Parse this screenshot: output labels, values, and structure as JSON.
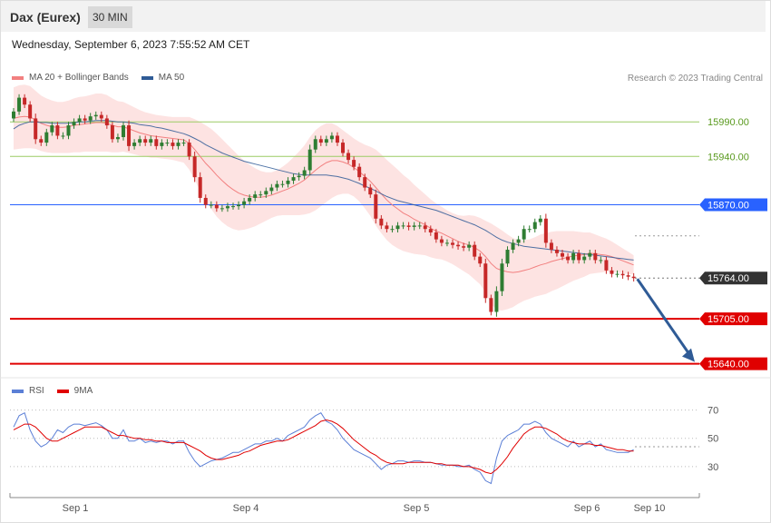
{
  "header": {
    "title": "Dax (Eurex)",
    "interval": "30 MIN",
    "datetime": "Wednesday, September 6, 2023 7:55:52 AM CET"
  },
  "legend": {
    "ma20": "MA 20 + Bollinger Bands",
    "ma50": "MA 50",
    "copyright": "Research © 2023 Trading Central"
  },
  "rsi_legend": {
    "rsi": "RSI",
    "ma": "9MA"
  },
  "colors": {
    "ma20": "#f28080",
    "ma50": "#2f5b96",
    "band_fill": "#fde0df",
    "bull": "#2e7d32",
    "bear": "#c62828",
    "resistance": "#9ccc65",
    "pivot": "#2962ff",
    "support": "#e00000",
    "current": "#333333",
    "rsi": "#5b7fd6",
    "rsi_ma": "#e00000",
    "arrow": "#2f5b96"
  },
  "chart_data": [
    {
      "type": "candlestick",
      "title": "Dax (Eurex) 30 MIN",
      "x_ticks": [
        "Sep 1",
        "Sep 4",
        "Sep 5",
        "Sep 6",
        "Sep 10"
      ],
      "ylim": [
        15625,
        16035
      ],
      "levels": [
        {
          "value": 15990.0,
          "label": "15990.00",
          "kind": "resistance"
        },
        {
          "value": 15940.0,
          "label": "15940.00",
          "kind": "resistance"
        },
        {
          "value": 15870.0,
          "label": "15870.00",
          "kind": "pivot"
        },
        {
          "value": 15764.0,
          "label": "15764.00",
          "kind": "current"
        },
        {
          "value": 15705.0,
          "label": "15705.00",
          "kind": "support"
        },
        {
          "value": 15640.0,
          "label": "15640.00",
          "kind": "support"
        }
      ],
      "close": [
        16005,
        16025,
        16015,
        15995,
        15965,
        15960,
        15975,
        15985,
        15970,
        15970,
        15985,
        15990,
        15995,
        15992,
        15998,
        16000,
        15995,
        15985,
        15965,
        15968,
        15985,
        15955,
        15960,
        15965,
        15960,
        15965,
        15955,
        15960,
        15960,
        15955,
        15960,
        15960,
        15940,
        15910,
        15880,
        15870,
        15870,
        15865,
        15865,
        15868,
        15868,
        15870,
        15875,
        15880,
        15885,
        15885,
        15890,
        15895,
        15900,
        15900,
        15905,
        15910,
        15912,
        15920,
        15950,
        15965,
        15960,
        15965,
        15970,
        15960,
        15945,
        15935,
        15925,
        15910,
        15895,
        15885,
        15850,
        15840,
        15835,
        15835,
        15840,
        15840,
        15838,
        15840,
        15840,
        15835,
        15830,
        15820,
        15815,
        15815,
        15812,
        15810,
        15808,
        15812,
        15795,
        15785,
        15735,
        15715,
        15745,
        15785,
        15805,
        15815,
        15820,
        15835,
        15835,
        15845,
        15850,
        15815,
        15805,
        15800,
        15795,
        15790,
        15800,
        15790,
        15795,
        15800,
        15790,
        15790,
        15775,
        15770,
        15770,
        15768,
        15766,
        15764
      ],
      "ma20": [
        15995,
        15997,
        15998,
        15997,
        15993,
        15988,
        15985,
        15983,
        15982,
        15982,
        15983,
        15985,
        15986,
        15987,
        15988,
        15989,
        15989,
        15988,
        15985,
        15983,
        15983,
        15980,
        15977,
        15974,
        15972,
        15970,
        15969,
        15968,
        15967,
        15966,
        15965,
        15964,
        15959,
        15950,
        15940,
        15930,
        15922,
        15913,
        15905,
        15898,
        15892,
        15887,
        15884,
        15882,
        15881,
        15881,
        15882,
        15884,
        15887,
        15890,
        15893,
        15897,
        15901,
        15906,
        15913,
        15920,
        15926,
        15931,
        15934,
        15934,
        15932,
        15929,
        15924,
        15918,
        15911,
        15904,
        15895,
        15886,
        15877,
        15870,
        15864,
        15858,
        15854,
        15849,
        15845,
        15841,
        15836,
        15832,
        15829,
        15825,
        15821,
        15817,
        15814,
        15812,
        15808,
        15803,
        15795,
        15785,
        15778,
        15775,
        15773,
        15772,
        15773,
        15775,
        15777,
        15780,
        15783,
        15785,
        15788,
        15790,
        15792,
        15794,
        15796,
        15797,
        15798,
        15800,
        15799,
        15798,
        15797,
        15795,
        15792,
        15789,
        15786,
        15783
      ],
      "ma50": [
        15980,
        15985,
        15988,
        15990,
        15990,
        15989,
        15989,
        15988,
        15988,
        15988,
        15988,
        15989,
        15990,
        15990,
        15991,
        15992,
        15992,
        15992,
        15991,
        15990,
        15990,
        15989,
        15988,
        15986,
        15985,
        15984,
        15982,
        15981,
        15979,
        15977,
        15975,
        15973,
        15970,
        15966,
        15962,
        15957,
        15953,
        15949,
        15945,
        15942,
        15939,
        15936,
        15933,
        15931,
        15929,
        15927,
        15925,
        15923,
        15921,
        15919,
        15917,
        15915,
        15914,
        15913,
        15913,
        15913,
        15913,
        15913,
        15912,
        15911,
        15909,
        15907,
        15904,
        15901,
        15897,
        15894,
        15890,
        15886,
        15882,
        15879,
        15876,
        15874,
        15872,
        15870,
        15868,
        15866,
        15864,
        15862,
        15859,
        15856,
        15853,
        15850,
        15847,
        15844,
        15841,
        15837,
        15833,
        15828,
        15823,
        15819,
        15816,
        15814,
        15812,
        15810,
        15809,
        15808,
        15807,
        15806,
        15805,
        15804,
        15803,
        15802,
        15801,
        15800,
        15799,
        15798,
        15797,
        15796,
        15795,
        15794,
        15793,
        15792,
        15791,
        15790
      ],
      "bb_width": [
        45,
        46,
        46,
        45,
        42,
        40,
        39,
        38,
        37,
        37,
        38,
        39,
        40,
        40,
        41,
        42,
        42,
        41,
        39,
        37,
        36,
        35,
        34,
        33,
        32,
        32,
        31,
        31,
        31,
        31,
        32,
        33,
        38,
        44,
        50,
        55,
        58,
        60,
        60,
        59,
        57,
        54,
        50,
        46,
        42,
        38,
        35,
        33,
        33,
        35,
        38,
        42,
        46,
        50,
        55,
        58,
        58,
        57,
        54,
        50,
        46,
        43,
        42,
        43,
        46,
        50,
        55,
        57,
        58,
        58,
        57,
        55,
        53,
        50,
        47,
        44,
        42,
        40,
        38,
        37,
        37,
        38,
        40,
        43,
        46,
        48,
        52,
        58,
        60,
        58,
        54,
        50,
        46,
        44,
        43,
        43,
        44,
        44,
        43,
        42,
        40,
        38,
        36,
        34,
        32,
        30,
        28,
        26,
        24,
        22,
        20,
        18,
        16,
        14
      ]
    },
    {
      "type": "line",
      "title": "RSI",
      "ylim": [
        10,
        80
      ],
      "y_ticks": [
        30,
        50,
        70
      ],
      "series": [
        {
          "name": "RSI",
          "values": [
            58,
            66,
            68,
            56,
            48,
            44,
            46,
            50,
            56,
            54,
            58,
            60,
            60,
            59,
            60,
            61,
            59,
            56,
            50,
            50,
            56,
            48,
            48,
            50,
            47,
            48,
            47,
            48,
            48,
            46,
            48,
            48,
            40,
            34,
            30,
            32,
            34,
            35,
            36,
            38,
            40,
            40,
            42,
            44,
            46,
            46,
            48,
            48,
            50,
            48,
            52,
            54,
            56,
            58,
            63,
            66,
            68,
            62,
            60,
            56,
            50,
            46,
            42,
            40,
            38,
            36,
            32,
            28,
            31,
            32,
            34,
            34,
            33,
            34,
            34,
            33,
            33,
            32,
            31,
            31,
            31,
            30,
            30,
            31,
            28,
            26,
            20,
            18,
            36,
            48,
            52,
            54,
            56,
            60,
            60,
            62,
            60,
            54,
            50,
            48,
            46,
            44,
            48,
            44,
            46,
            48,
            44,
            46,
            42,
            41,
            40,
            40,
            40,
            42
          ]
        },
        {
          "name": "9MA",
          "values": [
            56,
            58,
            60,
            60,
            58,
            54,
            50,
            48,
            48,
            50,
            52,
            54,
            56,
            58,
            58,
            58,
            58,
            56,
            54,
            52,
            52,
            51,
            50,
            50,
            49,
            49,
            48,
            48,
            47,
            47,
            47,
            47,
            45,
            43,
            41,
            38,
            36,
            35,
            35,
            36,
            37,
            38,
            40,
            41,
            43,
            45,
            46,
            47,
            48,
            48,
            49,
            51,
            53,
            55,
            57,
            59,
            62,
            63,
            62,
            60,
            57,
            53,
            49,
            46,
            43,
            40,
            38,
            35,
            33,
            32,
            32,
            32,
            33,
            33,
            33,
            33,
            33,
            32,
            32,
            31,
            31,
            31,
            30,
            30,
            29,
            28,
            26,
            25,
            28,
            32,
            37,
            43,
            48,
            53,
            56,
            58,
            58,
            57,
            55,
            53,
            50,
            48,
            47,
            46,
            46,
            46,
            45,
            45,
            44,
            43,
            42,
            42,
            41,
            41
          ]
        }
      ]
    }
  ]
}
